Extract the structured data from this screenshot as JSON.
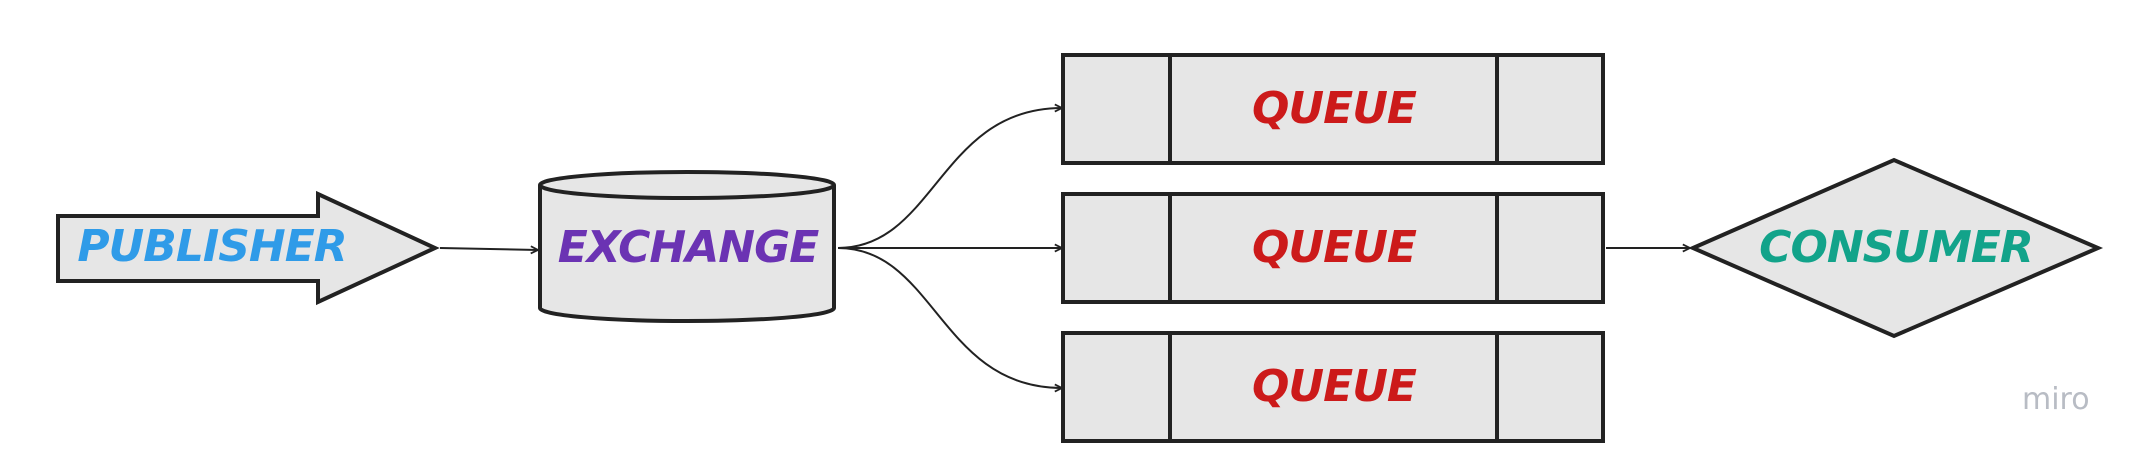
{
  "diagram": {
    "publisher": {
      "label": "PUBLISHER",
      "color": "#2f9be8"
    },
    "exchange": {
      "label": "EXCHANGE",
      "color": "#6b33b3"
    },
    "queues": [
      {
        "label": "QUEUE",
        "color": "#cc1a1a"
      },
      {
        "label": "QUEUE",
        "color": "#cc1a1a"
      },
      {
        "label": "QUEUE",
        "color": "#cc1a1a"
      }
    ],
    "consumer": {
      "label": "CONSUMER",
      "color": "#12a38a"
    },
    "shape_fill": "#e6e6e6",
    "stroke": "#222222"
  },
  "branding": {
    "watermark": "miro"
  }
}
